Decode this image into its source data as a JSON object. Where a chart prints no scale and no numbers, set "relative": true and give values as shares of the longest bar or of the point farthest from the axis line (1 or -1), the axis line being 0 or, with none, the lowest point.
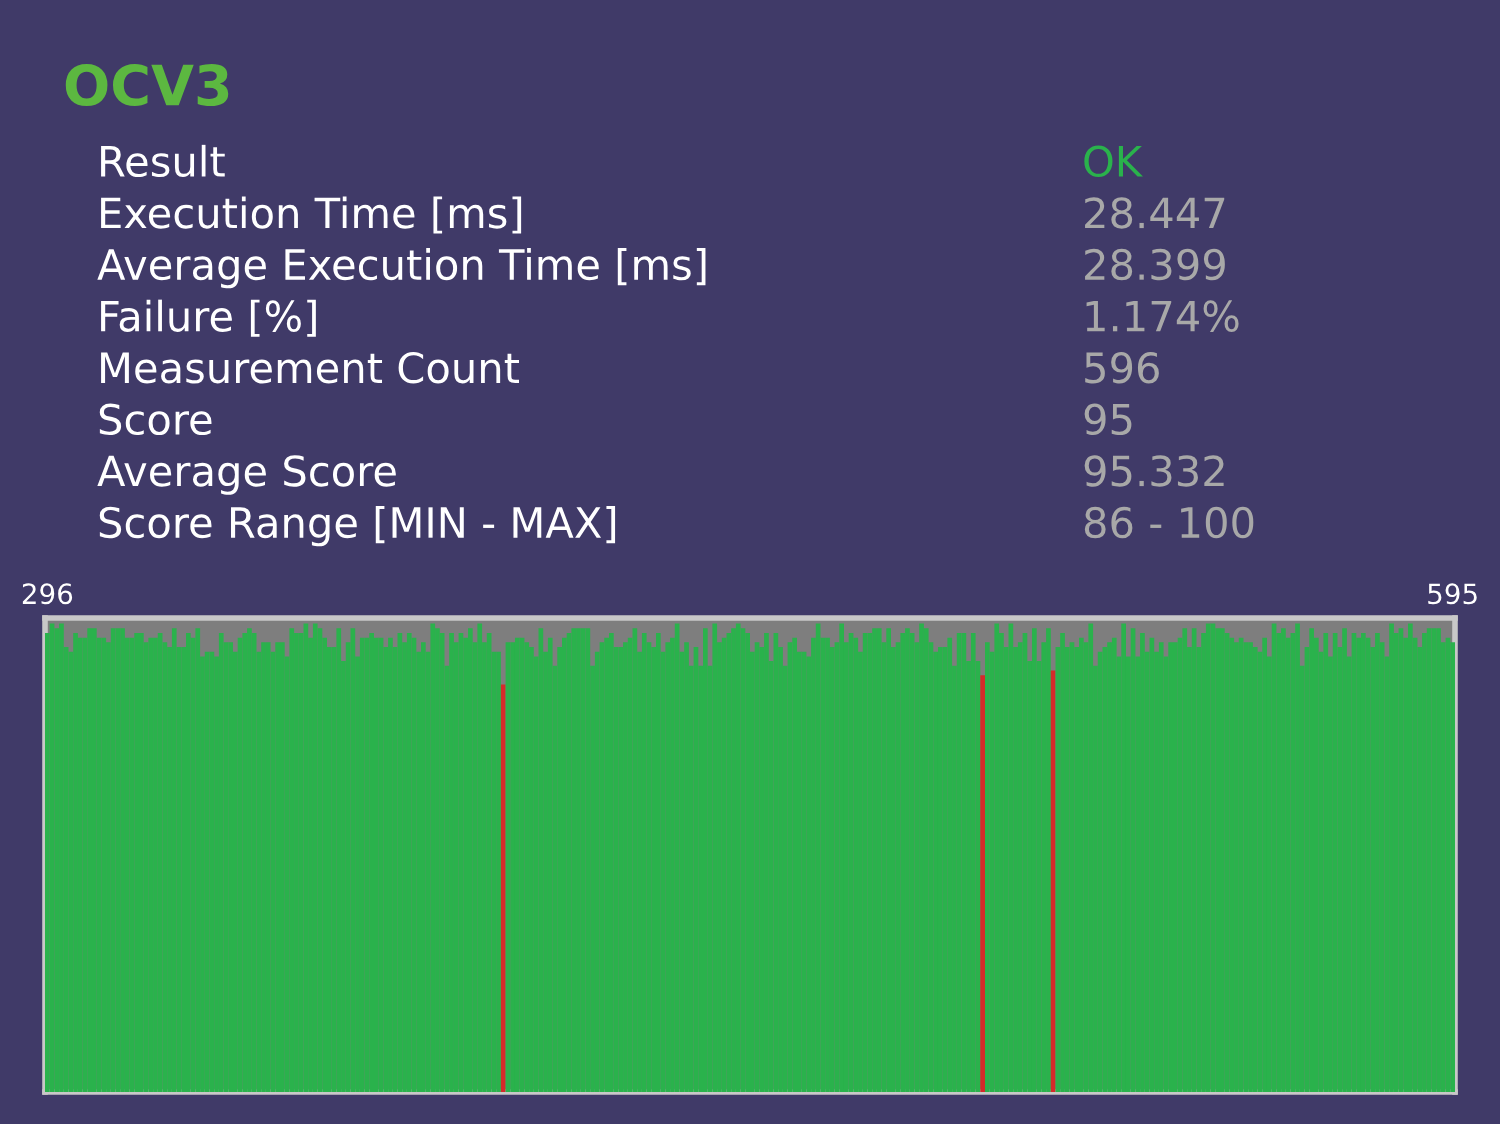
{
  "chart_data": [
    {
      "type": "other",
      "title": "OCV3",
      "annotations": [
        "Result",
        "OK",
        "Execution Time [ms]",
        "28.447",
        "Average Execution Time [ms]",
        "28.399",
        "Failure [%]",
        "1.174%",
        "Measurement Count",
        "596",
        "Score",
        "95",
        "Average Score",
        "95.332",
        "Score Range [MIN - MAX]",
        "86 - 100"
      ]
    },
    {
      "type": "bar",
      "relative": true,
      "categories": [
        "296",
        null,
        null,
        null,
        null,
        null,
        null,
        null,
        null,
        null,
        null,
        null,
        null,
        null,
        null,
        null,
        null,
        null,
        null,
        null,
        null,
        null,
        null,
        null,
        null,
        null,
        null,
        null,
        null,
        null,
        null,
        null,
        null,
        null,
        null,
        null,
        null,
        null,
        null,
        null,
        null,
        null,
        null,
        null,
        null,
        null,
        null,
        null,
        null,
        null,
        null,
        null,
        null,
        null,
        null,
        null,
        null,
        null,
        null,
        null,
        null,
        null,
        null,
        null,
        null,
        null,
        null,
        null,
        null,
        null,
        null,
        null,
        null,
        null,
        null,
        null,
        null,
        null,
        null,
        null,
        null,
        null,
        null,
        null,
        null,
        null,
        null,
        null,
        null,
        null,
        null,
        null,
        null,
        null,
        null,
        null,
        null,
        null,
        null,
        null,
        null,
        null,
        null,
        null,
        null,
        null,
        null,
        null,
        null,
        null,
        null,
        null,
        null,
        null,
        null,
        null,
        null,
        null,
        null,
        null,
        null,
        null,
        null,
        null,
        null,
        null,
        null,
        null,
        null,
        null,
        null,
        null,
        null,
        null,
        null,
        null,
        null,
        null,
        null,
        null,
        null,
        null,
        null,
        null,
        null,
        null,
        null,
        null,
        null,
        null,
        null,
        null,
        null,
        null,
        null,
        null,
        null,
        null,
        null,
        null,
        null,
        null,
        null,
        null,
        null,
        null,
        null,
        null,
        null,
        null,
        null,
        null,
        null,
        null,
        null,
        null,
        null,
        null,
        null,
        null,
        null,
        null,
        null,
        null,
        null,
        null,
        null,
        null,
        null,
        null,
        null,
        null,
        null,
        null,
        null,
        null,
        null,
        null,
        null,
        null,
        null,
        null,
        null,
        null,
        null,
        null,
        null,
        null,
        null,
        null,
        null,
        null,
        null,
        null,
        null,
        null,
        null,
        null,
        null,
        null,
        null,
        null,
        null,
        null,
        null,
        null,
        null,
        null,
        null,
        null,
        null,
        null,
        null,
        null,
        null,
        null,
        null,
        null,
        null,
        null,
        null,
        null,
        null,
        null,
        null,
        null,
        null,
        null,
        null,
        null,
        null,
        null,
        null,
        null,
        null,
        null,
        null,
        null,
        null,
        null,
        null,
        null,
        null,
        null,
        null,
        null,
        null,
        null,
        null,
        null,
        null,
        null,
        null,
        null,
        null,
        null,
        null,
        null,
        null,
        null,
        null,
        null,
        null,
        null,
        null,
        null,
        null,
        null,
        null,
        null,
        null,
        null,
        null,
        null,
        null,
        null,
        null,
        null,
        null,
        "595"
      ],
      "values": [
        0.98,
        1.0,
        0.99,
        1.0,
        0.95,
        0.94,
        0.98,
        0.97,
        0.97,
        0.99,
        0.99,
        0.97,
        0.97,
        0.96,
        0.99,
        0.99,
        0.99,
        0.97,
        0.97,
        0.98,
        0.98,
        0.96,
        0.97,
        0.97,
        0.98,
        0.96,
        0.95,
        0.99,
        0.95,
        0.95,
        0.98,
        0.97,
        0.99,
        0.93,
        0.94,
        0.94,
        0.93,
        0.98,
        0.96,
        0.96,
        0.94,
        0.97,
        0.98,
        0.99,
        0.98,
        0.94,
        0.96,
        0.96,
        0.94,
        0.96,
        0.96,
        0.93,
        0.99,
        0.98,
        0.98,
        1.0,
        0.97,
        1.0,
        0.99,
        0.97,
        0.95,
        0.95,
        0.99,
        0.92,
        0.96,
        0.99,
        0.93,
        0.97,
        0.97,
        0.98,
        0.97,
        0.97,
        0.95,
        0.97,
        0.95,
        0.98,
        0.96,
        0.98,
        0.97,
        0.94,
        0.96,
        0.94,
        1.0,
        0.99,
        0.98,
        0.91,
        0.98,
        0.96,
        0.98,
        0.97,
        0.99,
        0.96,
        1.0,
        0.96,
        0.98,
        0.94,
        0.94,
        0.87,
        0.96,
        0.96,
        0.97,
        0.97,
        0.96,
        0.95,
        0.93,
        0.99,
        0.94,
        0.97,
        0.91,
        0.95,
        0.97,
        0.98,
        0.99,
        0.99,
        0.99,
        0.99,
        0.91,
        0.94,
        0.96,
        0.97,
        0.98,
        0.95,
        0.95,
        0.96,
        0.97,
        0.99,
        0.94,
        0.98,
        0.96,
        0.95,
        0.98,
        0.94,
        0.96,
        0.97,
        1.0,
        0.94,
        0.96,
        0.91,
        0.95,
        0.91,
        0.99,
        0.91,
        1.0,
        0.96,
        0.97,
        0.98,
        0.99,
        1.0,
        0.99,
        0.98,
        0.94,
        0.96,
        0.95,
        0.98,
        0.92,
        0.98,
        0.95,
        0.91,
        0.96,
        0.97,
        0.94,
        0.94,
        0.93,
        0.97,
        1.0,
        0.97,
        0.97,
        0.95,
        0.96,
        1.0,
        0.96,
        0.98,
        0.97,
        0.94,
        0.98,
        0.98,
        0.99,
        0.99,
        0.96,
        0.99,
        0.95,
        0.96,
        0.98,
        0.99,
        0.98,
        0.96,
        1.0,
        0.99,
        0.96,
        0.94,
        0.95,
        0.95,
        0.97,
        0.91,
        0.98,
        0.98,
        0.92,
        0.98,
        0.92,
        0.89,
        0.96,
        0.94,
        1.0,
        0.98,
        0.95,
        1.0,
        0.95,
        0.96,
        0.98,
        0.92,
        0.99,
        0.92,
        0.96,
        0.99,
        0.9,
        0.95,
        0.98,
        0.95,
        0.96,
        0.95,
        0.97,
        0.96,
        1.0,
        0.91,
        0.94,
        0.95,
        0.96,
        0.97,
        0.93,
        1.0,
        0.93,
        0.99,
        0.93,
        0.98,
        0.94,
        0.97,
        0.94,
        0.96,
        0.93,
        0.96,
        0.96,
        0.97,
        0.99,
        0.95,
        0.99,
        0.95,
        0.98,
        1.0,
        1.0,
        0.99,
        0.99,
        0.98,
        0.97,
        0.96,
        0.97,
        0.96,
        0.96,
        0.95,
        0.94,
        0.97,
        0.93,
        1.0,
        0.98,
        0.99,
        0.97,
        0.98,
        1.0,
        0.91,
        0.95,
        0.99,
        0.97,
        0.94,
        0.98,
        0.93,
        0.98,
        0.95,
        0.99,
        0.93,
        0.98,
        0.97,
        0.98,
        0.97,
        0.95,
        0.98,
        0.96,
        0.93,
        1.0,
        0.98,
        0.99,
        0.97,
        1.0,
        0.97,
        0.95,
        0.98,
        0.99,
        0.99,
        0.99,
        0.96,
        0.97,
        0.96
      ],
      "colors": [
        "#2ab24c",
        "#2ab24c",
        "#2ab24c",
        "#2ab24c",
        "#2ab24c",
        "#2ab24c",
        "#2ab24c",
        "#2ab24c",
        "#2ab24c",
        "#2ab24c",
        "#2ab24c",
        "#2ab24c",
        "#2ab24c",
        "#2ab24c",
        "#2ab24c",
        "#2ab24c",
        "#2ab24c",
        "#2ab24c",
        "#2ab24c",
        "#2ab24c",
        "#2ab24c",
        "#2ab24c",
        "#2ab24c",
        "#2ab24c",
        "#2ab24c",
        "#2ab24c",
        "#2ab24c",
        "#2ab24c",
        "#2ab24c",
        "#2ab24c",
        "#2ab24c",
        "#2ab24c",
        "#2ab24c",
        "#2ab24c",
        "#2ab24c",
        "#2ab24c",
        "#2ab24c",
        "#2ab24c",
        "#2ab24c",
        "#2ab24c",
        "#2ab24c",
        "#2ab24c",
        "#2ab24c",
        "#2ab24c",
        "#2ab24c",
        "#2ab24c",
        "#2ab24c",
        "#2ab24c",
        "#2ab24c",
        "#2ab24c",
        "#2ab24c",
        "#2ab24c",
        "#2ab24c",
        "#2ab24c",
        "#2ab24c",
        "#2ab24c",
        "#2ab24c",
        "#2ab24c",
        "#2ab24c",
        "#2ab24c",
        "#2ab24c",
        "#2ab24c",
        "#2ab24c",
        "#2ab24c",
        "#2ab24c",
        "#2ab24c",
        "#2ab24c",
        "#2ab24c",
        "#2ab24c",
        "#2ab24c",
        "#2ab24c",
        "#2ab24c",
        "#2ab24c",
        "#2ab24c",
        "#2ab24c",
        "#2ab24c",
        "#2ab24c",
        "#2ab24c",
        "#2ab24c",
        "#2ab24c",
        "#2ab24c",
        "#2ab24c",
        "#2ab24c",
        "#2ab24c",
        "#2ab24c",
        "#2ab24c",
        "#2ab24c",
        "#2ab24c",
        "#2ab24c",
        "#2ab24c",
        "#2ab24c",
        "#2ab24c",
        "#2ab24c",
        "#2ab24c",
        "#2ab24c",
        "#2ab24c",
        "#2ab24c",
        "#d42a2a",
        "#2ab24c",
        "#2ab24c",
        "#2ab24c",
        "#2ab24c",
        "#2ab24c",
        "#2ab24c",
        "#2ab24c",
        "#2ab24c",
        "#2ab24c",
        "#2ab24c",
        "#2ab24c",
        "#2ab24c",
        "#2ab24c",
        "#2ab24c",
        "#2ab24c",
        "#2ab24c",
        "#2ab24c",
        "#2ab24c",
        "#2ab24c",
        "#2ab24c",
        "#2ab24c",
        "#2ab24c",
        "#2ab24c",
        "#2ab24c",
        "#2ab24c",
        "#2ab24c",
        "#2ab24c",
        "#2ab24c",
        "#2ab24c",
        "#2ab24c",
        "#2ab24c",
        "#2ab24c",
        "#2ab24c",
        "#2ab24c",
        "#2ab24c",
        "#2ab24c",
        "#2ab24c",
        "#2ab24c",
        "#2ab24c",
        "#2ab24c",
        "#2ab24c",
        "#2ab24c",
        "#2ab24c",
        "#2ab24c",
        "#2ab24c",
        "#2ab24c",
        "#2ab24c",
        "#2ab24c",
        "#2ab24c",
        "#2ab24c",
        "#2ab24c",
        "#2ab24c",
        "#2ab24c",
        "#2ab24c",
        "#2ab24c",
        "#2ab24c",
        "#2ab24c",
        "#2ab24c",
        "#2ab24c",
        "#2ab24c",
        "#2ab24c",
        "#2ab24c",
        "#2ab24c",
        "#2ab24c",
        "#2ab24c",
        "#2ab24c",
        "#2ab24c",
        "#2ab24c",
        "#2ab24c",
        "#2ab24c",
        "#2ab24c",
        "#2ab24c",
        "#2ab24c",
        "#2ab24c",
        "#2ab24c",
        "#2ab24c",
        "#2ab24c",
        "#2ab24c",
        "#2ab24c",
        "#2ab24c",
        "#2ab24c",
        "#2ab24c",
        "#2ab24c",
        "#2ab24c",
        "#2ab24c",
        "#2ab24c",
        "#2ab24c",
        "#2ab24c",
        "#2ab24c",
        "#2ab24c",
        "#2ab24c",
        "#2ab24c",
        "#2ab24c",
        "#2ab24c",
        "#2ab24c",
        "#2ab24c",
        "#2ab24c",
        "#2ab24c",
        "#2ab24c",
        "#2ab24c",
        "#2ab24c",
        "#d42a2a",
        "#2ab24c",
        "#2ab24c",
        "#2ab24c",
        "#2ab24c",
        "#2ab24c",
        "#2ab24c",
        "#2ab24c",
        "#2ab24c",
        "#2ab24c",
        "#2ab24c",
        "#2ab24c",
        "#2ab24c",
        "#2ab24c",
        "#2ab24c",
        "#d42a2a",
        "#2ab24c",
        "#2ab24c",
        "#2ab24c",
        "#2ab24c",
        "#2ab24c",
        "#2ab24c",
        "#2ab24c",
        "#2ab24c",
        "#2ab24c",
        "#2ab24c",
        "#2ab24c",
        "#2ab24c",
        "#2ab24c",
        "#2ab24c",
        "#2ab24c",
        "#2ab24c",
        "#2ab24c",
        "#2ab24c",
        "#2ab24c",
        "#2ab24c",
        "#2ab24c",
        "#2ab24c",
        "#2ab24c",
        "#2ab24c",
        "#2ab24c",
        "#2ab24c",
        "#2ab24c",
        "#2ab24c",
        "#2ab24c",
        "#2ab24c",
        "#2ab24c",
        "#2ab24c",
        "#2ab24c",
        "#2ab24c",
        "#2ab24c",
        "#2ab24c",
        "#2ab24c",
        "#2ab24c",
        "#2ab24c",
        "#2ab24c",
        "#2ab24c",
        "#2ab24c",
        "#2ab24c",
        "#2ab24c",
        "#2ab24c",
        "#2ab24c",
        "#2ab24c",
        "#2ab24c",
        "#2ab24c",
        "#2ab24c",
        "#2ab24c",
        "#2ab24c",
        "#2ab24c",
        "#2ab24c",
        "#2ab24c",
        "#2ab24c",
        "#2ab24c",
        "#2ab24c",
        "#2ab24c",
        "#2ab24c",
        "#2ab24c",
        "#2ab24c",
        "#2ab24c",
        "#2ab24c",
        "#2ab24c",
        "#2ab24c",
        "#2ab24c",
        "#2ab24c",
        "#2ab24c",
        "#2ab24c",
        "#2ab24c",
        "#2ab24c",
        "#2ab24c",
        "#2ab24c",
        "#2ab24c",
        "#2ab24c",
        "#2ab24c",
        "#2ab24c",
        "#2ab24c",
        "#2ab24c",
        "#2ab24c",
        "#2ab24c",
        "#2ab24c",
        "#2ab24c",
        "#2ab24c"
      ]
    }
  ]
}
